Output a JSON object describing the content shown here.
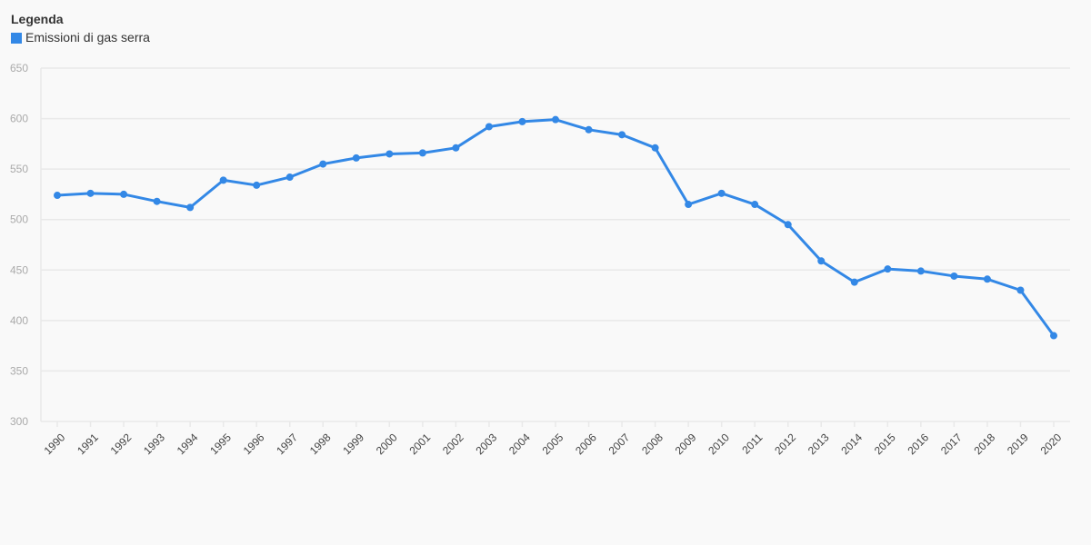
{
  "legend": {
    "title": "Legenda",
    "series_label": "Emissioni di gas serra"
  },
  "colors": {
    "series": "#3388e6",
    "grid": "#e9e9e9",
    "axis_text_y": "#aaaaaa",
    "axis_text_x": "#444444"
  },
  "chart_data": {
    "type": "line",
    "title": "",
    "xlabel": "",
    "ylabel": "",
    "ylim": [
      300,
      650
    ],
    "yticks": [
      300,
      350,
      400,
      450,
      500,
      550,
      600,
      650
    ],
    "grid": true,
    "legend_position": "top-left",
    "categories": [
      "1990",
      "1991",
      "1992",
      "1993",
      "1994",
      "1995",
      "1996",
      "1997",
      "1998",
      "1999",
      "2000",
      "2001",
      "2002",
      "2003",
      "2004",
      "2005",
      "2006",
      "2007",
      "2008",
      "2009",
      "2010",
      "2011",
      "2012",
      "2013",
      "2014",
      "2015",
      "2016",
      "2017",
      "2018",
      "2019",
      "2020"
    ],
    "series": [
      {
        "name": "Emissioni di gas serra",
        "values": [
          524,
          526,
          525,
          518,
          512,
          539,
          534,
          542,
          555,
          561,
          565,
          566,
          571,
          592,
          597,
          599,
          589,
          584,
          571,
          515,
          526,
          515,
          495,
          459,
          438,
          451,
          449,
          444,
          441,
          430,
          385
        ]
      }
    ]
  }
}
